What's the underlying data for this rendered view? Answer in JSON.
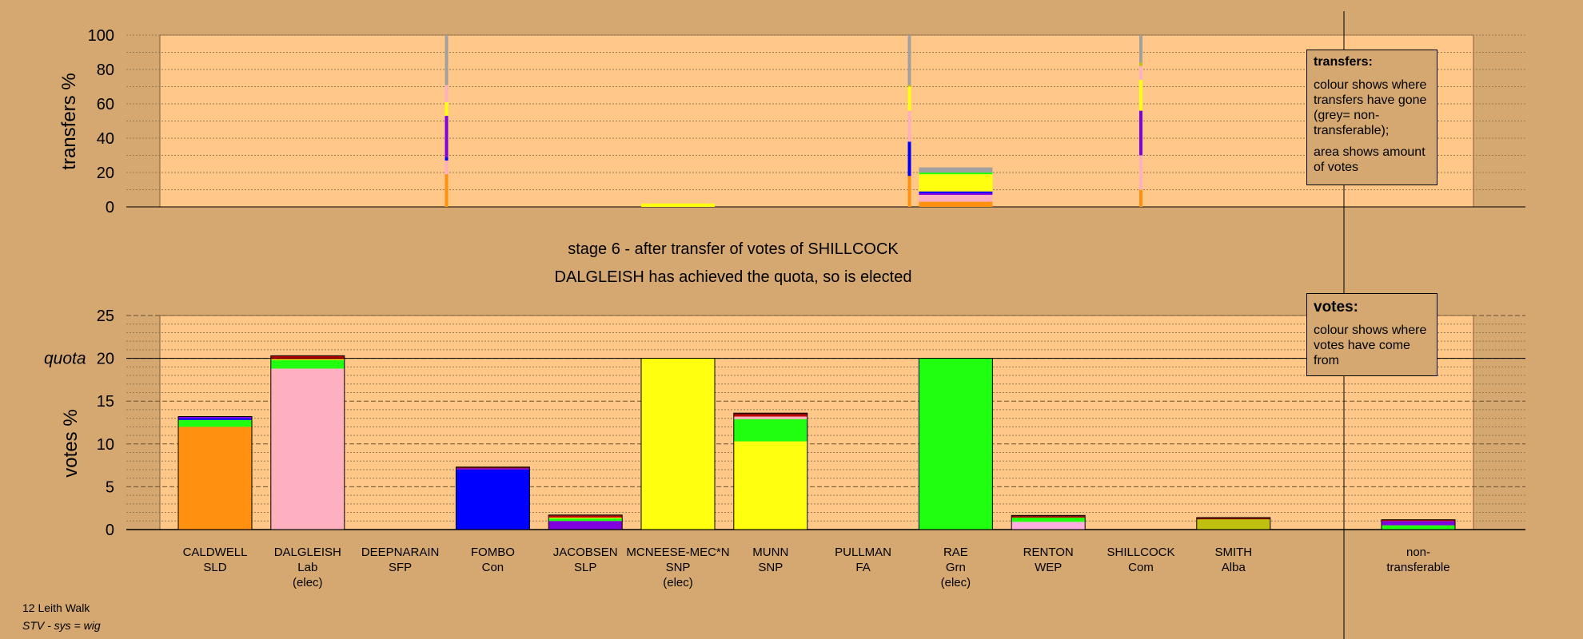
{
  "chart_data": {
    "type": "bar",
    "title": "stage 6 - after transfer of votes of SHILLCOCK",
    "subtitle": "DALGLEISH has achieved the quota, so is elected",
    "candidates": [
      {
        "name": "CALDWELL",
        "party": "SLD",
        "status": ""
      },
      {
        "name": "DALGLEISH",
        "party": "Lab",
        "status": "(elec)"
      },
      {
        "name": "DEEPNARAIN",
        "party": "SFP",
        "status": ""
      },
      {
        "name": "FOMBO",
        "party": "Con",
        "status": ""
      },
      {
        "name": "JACOBSEN",
        "party": "SLP",
        "status": ""
      },
      {
        "name": "MCNEESE-MEC*N",
        "party": "SNP",
        "status": "(elec)"
      },
      {
        "name": "MUNN",
        "party": "SNP",
        "status": ""
      },
      {
        "name": "PULLMAN",
        "party": "FA",
        "status": ""
      },
      {
        "name": "RAE",
        "party": "Grn",
        "status": "(elec)"
      },
      {
        "name": "RENTON",
        "party": "WEP",
        "status": ""
      },
      {
        "name": "SHILLCOCK",
        "party": "Com",
        "status": ""
      },
      {
        "name": "SMITH",
        "party": "Alba",
        "status": ""
      },
      {
        "name": "non-",
        "party": "transferable",
        "status": ""
      }
    ],
    "colors": {
      "SLD": "#ff9010",
      "Lab": "#ffb0c0",
      "Con": "#0000ff",
      "SLP": "#8000e0",
      "SNP": "#ffff10",
      "Grn": "#20ff10",
      "Alba": "#c0c010",
      "WEP": "#ffb0e0",
      "Com": "#c00000",
      "FA": "#800000",
      "nt": "#a0a0a0"
    },
    "votes_axis": {
      "ylabel": "votes %",
      "ylim": [
        0,
        25
      ],
      "ticks": [
        "0",
        "5",
        "10",
        "15",
        "20",
        "25"
      ],
      "quota": 20,
      "quota_label": "quota"
    },
    "transfers_axis": {
      "ylabel": "transfers %",
      "ylim": [
        0,
        100
      ],
      "ticks": [
        "0",
        "20",
        "40",
        "60",
        "80",
        "100"
      ]
    },
    "vote_stacks": [
      [
        {
          "c": "SLD",
          "v": 12.0
        },
        {
          "c": "Grn",
          "v": 0.8
        },
        {
          "c": "Con",
          "v": 0.2
        },
        {
          "c": "SLP",
          "v": 0.2
        }
      ],
      [
        {
          "c": "Lab",
          "v": 18.8
        },
        {
          "c": "Grn",
          "v": 1.0
        },
        {
          "c": "SNP",
          "v": 0.1
        },
        {
          "c": "FA",
          "v": 0.2
        },
        {
          "c": "Com",
          "v": 0.2
        }
      ],
      [],
      [
        {
          "c": "Con",
          "v": 7.0
        },
        {
          "c": "SLP",
          "v": 0.15
        },
        {
          "c": "FA",
          "v": 0.15
        }
      ],
      [
        {
          "c": "SLP",
          "v": 1.0
        },
        {
          "c": "Grn",
          "v": 0.3
        },
        {
          "c": "SNP",
          "v": 0.1
        },
        {
          "c": "Com",
          "v": 0.2
        },
        {
          "c": "FA",
          "v": 0.1
        }
      ],
      [
        {
          "c": "SNP",
          "v": 20.0
        }
      ],
      [
        {
          "c": "SNP",
          "v": 10.3
        },
        {
          "c": "Grn",
          "v": 2.6
        },
        {
          "c": "Lab",
          "v": 0.3
        },
        {
          "c": "Com",
          "v": 0.2
        },
        {
          "c": "FA",
          "v": 0.2
        }
      ],
      [],
      [
        {
          "c": "Grn",
          "v": 20.0
        }
      ],
      [
        {
          "c": "WEP",
          "v": 0.9
        },
        {
          "c": "Grn",
          "v": 0.5
        },
        {
          "c": "Com",
          "v": 0.1
        },
        {
          "c": "FA",
          "v": 0.15
        }
      ],
      [],
      [
        {
          "c": "Alba",
          "v": 1.2
        },
        {
          "c": "FA",
          "v": 0.2
        }
      ],
      [
        {
          "c": "Grn",
          "v": 0.5
        },
        {
          "c": "SLP",
          "v": 0.5
        },
        {
          "c": "Com",
          "v": 0.15
        }
      ]
    ],
    "transfer_bars": [
      {
        "slot": 2.5,
        "width": "thin",
        "segments": [
          {
            "c": "SLD",
            "v": 19
          },
          {
            "c": "Lab",
            "v": 8
          },
          {
            "c": "Con",
            "v": 2
          },
          {
            "c": "SLP",
            "v": 24
          },
          {
            "c": "SNP",
            "v": 8
          },
          {
            "c": "Lab",
            "v": 10
          },
          {
            "c": "nt",
            "v": 29
          }
        ]
      },
      {
        "slot": 5,
        "width": "full",
        "segments": [
          {
            "c": "SNP",
            "v": 2
          }
        ]
      },
      {
        "slot": 7.5,
        "width": "thin",
        "segments": [
          {
            "c": "SLD",
            "v": 18
          },
          {
            "c": "Con",
            "v": 20
          },
          {
            "c": "Lab",
            "v": 18
          },
          {
            "c": "SNP",
            "v": 14
          },
          {
            "c": "Alba",
            "v": 1
          },
          {
            "c": "nt",
            "v": 29
          }
        ]
      },
      {
        "slot": 8,
        "width": "full",
        "segments": [
          {
            "c": "SLD",
            "v": 3
          },
          {
            "c": "Lab",
            "v": 4
          },
          {
            "c": "SLP",
            "v": 1
          },
          {
            "c": "Con",
            "v": 1
          },
          {
            "c": "SNP",
            "v": 10
          },
          {
            "c": "Grn",
            "v": 1
          },
          {
            "c": "nt",
            "v": 3
          }
        ]
      },
      {
        "slot": 10,
        "width": "thin",
        "segments": [
          {
            "c": "SLD",
            "v": 10
          },
          {
            "c": "Lab",
            "v": 20
          },
          {
            "c": "SLP",
            "v": 26
          },
          {
            "c": "SNP",
            "v": 18
          },
          {
            "c": "Lab",
            "v": 8
          },
          {
            "c": "Alba",
            "v": 2
          },
          {
            "c": "nt",
            "v": 16
          }
        ]
      }
    ]
  },
  "legend_transfers": {
    "title": "transfers:",
    "line1": "colour shows where transfers have gone (grey= non-transferable);",
    "line2": "area shows amount of votes"
  },
  "legend_votes": {
    "title": "votes:",
    "line1": "colour shows where votes have come from"
  },
  "footer": {
    "ward": "12 Leith Walk",
    "system": "STV - sys = wig"
  }
}
